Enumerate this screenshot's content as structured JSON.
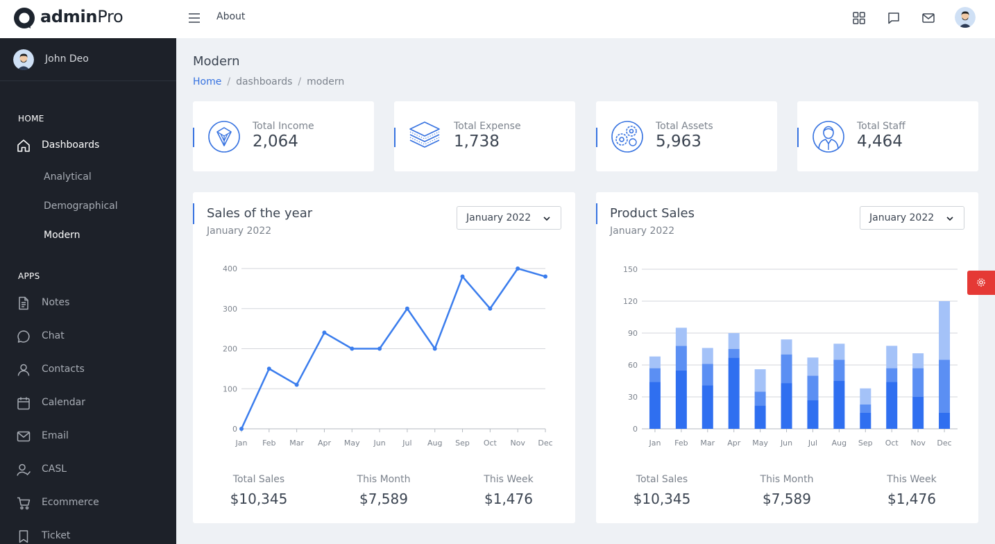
{
  "brand": {
    "bold": "admin",
    "light": "Pro"
  },
  "topbar": {
    "about": "About"
  },
  "user": {
    "name": "John Deo"
  },
  "sidebar": {
    "home_heading": "HOME",
    "dashboards": "Dashboards",
    "sub": [
      "Analytical",
      "Demographical",
      "Modern"
    ],
    "apps_heading": "APPS",
    "apps": [
      {
        "label": "Notes",
        "icon": "notes-icon"
      },
      {
        "label": "Chat",
        "icon": "chat-icon"
      },
      {
        "label": "Contacts",
        "icon": "contacts-icon"
      },
      {
        "label": "Calendar",
        "icon": "calendar-icon"
      },
      {
        "label": "Email",
        "icon": "email-icon"
      },
      {
        "label": "CASL",
        "icon": "casl-icon"
      },
      {
        "label": "Ecommerce",
        "icon": "cart-icon"
      },
      {
        "label": "Ticket",
        "icon": "ticket-icon"
      }
    ]
  },
  "page": {
    "title": "Modern",
    "breadcrumb": {
      "home": "Home",
      "level2": "dashboards",
      "level3": "modern"
    }
  },
  "stats": [
    {
      "label": "Total Income",
      "value": "2,064",
      "icon": "income-icon"
    },
    {
      "label": "Total Expense",
      "value": "1,738",
      "icon": "layers-icon"
    },
    {
      "label": "Total Assets",
      "value": "5,963",
      "icon": "assets-icon"
    },
    {
      "label": "Total Staff",
      "value": "4,464",
      "icon": "staff-icon"
    }
  ],
  "sales_card": {
    "title": "Sales of the year",
    "subtitle": "January 2022",
    "select": "January 2022",
    "summary": [
      {
        "label": "Total Sales",
        "value": "$10,345"
      },
      {
        "label": "This Month",
        "value": "$7,589"
      },
      {
        "label": "This Week",
        "value": "$1,476"
      }
    ]
  },
  "product_card": {
    "title": "Product Sales",
    "subtitle": "January 2022",
    "select": "January 2022",
    "summary": [
      {
        "label": "Total Sales",
        "value": "$10,345"
      },
      {
        "label": "This Month",
        "value": "$7,589"
      },
      {
        "label": "This Week",
        "value": "$1,476"
      }
    ]
  },
  "chart_data": [
    {
      "type": "line",
      "title": "",
      "categories": [
        "Jan",
        "Feb",
        "Mar",
        "Apr",
        "May",
        "Jun",
        "Jul",
        "Aug",
        "Sep",
        "Oct",
        "Nov",
        "Dec"
      ],
      "values": [
        0,
        150,
        110,
        240,
        200,
        200,
        300,
        200,
        380,
        300,
        400,
        380
      ],
      "ylim": [
        0,
        400
      ],
      "yticks": [
        0,
        100,
        200,
        300,
        400
      ],
      "grid": true,
      "color": "#3b7ded"
    },
    {
      "type": "bar",
      "stacked": true,
      "title": "",
      "categories": [
        "Jan",
        "Feb",
        "Mar",
        "Apr",
        "May",
        "Jun",
        "Jul",
        "Aug",
        "Sep",
        "Oct",
        "Nov",
        "Dec"
      ],
      "series": [
        {
          "values": [
            44,
            55,
            41,
            67,
            22,
            43,
            27,
            45,
            15,
            44,
            30,
            15
          ],
          "color": "#2f6ff0"
        },
        {
          "values": [
            13,
            23,
            20,
            8,
            13,
            27,
            23,
            20,
            8,
            13,
            27,
            50
          ],
          "color": "#5b8ff3"
        },
        {
          "values": [
            11,
            17,
            15,
            15,
            21,
            14,
            17,
            15,
            15,
            21,
            14,
            55
          ],
          "color": "#a4c2f8"
        }
      ],
      "ylim": [
        0,
        150
      ],
      "yticks": [
        0,
        30,
        60,
        90,
        120,
        150
      ],
      "grid": true
    }
  ],
  "colors": {
    "accent": "#3672e0",
    "sidebar": "#1d2129",
    "danger": "#e53935"
  }
}
